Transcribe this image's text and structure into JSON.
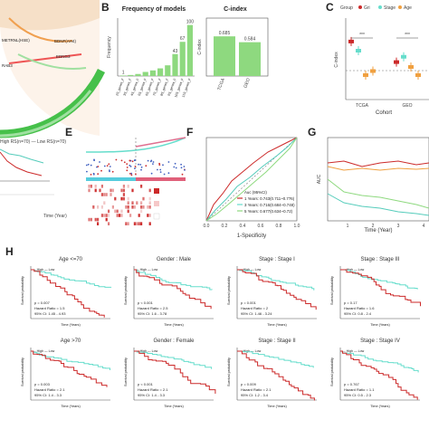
{
  "panels": {
    "A": {
      "label": "",
      "genes": [
        "METRNL(HSE)",
        "BDNF(AH4)",
        "EDNG3",
        "RAB3",
        "PTGER4",
        "ADAM9"
      ]
    },
    "B": {
      "label": "B"
    },
    "C": {
      "label": "C"
    },
    "E": {
      "label": "E"
    },
    "F": {
      "label": "F"
    },
    "G": {
      "label": "G"
    },
    "H": {
      "label": "H"
    }
  },
  "colors": {
    "green": "#8ed97f",
    "teal": "#55ccbb",
    "red": "#cc2a2a",
    "orange": "#f0a040",
    "cyan": "#66ddcc",
    "pink": "#e07090",
    "blue": "#4060c0"
  },
  "chart_data": [
    {
      "type": "bar",
      "id": "B-frequency",
      "title": "Frequency of models",
      "ylabel": "Frequency",
      "categories": [
        "2S_genes_F",
        "3S_genes_F",
        "4S_genes_F",
        "5S_genes_F",
        "6S_genes_F",
        "7S_genes_F",
        "8S_genes_F",
        "9S_genes_F",
        "10S_genes_F",
        "11S_genes_F"
      ],
      "values": [
        1,
        2,
        4,
        8,
        11,
        15,
        21,
        43,
        67,
        100
      ],
      "value_labels": [
        "1",
        "",
        "",
        "",
        "",
        "",
        "",
        "43",
        "67",
        "100"
      ],
      "ylim": [
        0,
        110
      ]
    },
    {
      "type": "bar",
      "id": "B-cindex",
      "title": "C-index",
      "ylabel": "C-index",
      "categories": [
        "TCGA",
        "GEO"
      ],
      "values": [
        0.685,
        0.584
      ],
      "value_labels": [
        "0.685",
        "0.584"
      ],
      "ylim": [
        0,
        1
      ]
    },
    {
      "type": "scatter",
      "id": "C-cindex",
      "xlabel": "Cohort",
      "ylabel": "C-index",
      "categories": [
        "TCGA",
        "GEO"
      ],
      "legend_title": "Group",
      "series": [
        {
          "name": "Gri",
          "values": [
            0.685,
            0.584
          ]
        },
        {
          "name": "Stage",
          "values": [
            0.64,
            0.61
          ]
        },
        {
          "name": "Age",
          "values": [
            0.52,
            0.56
          ]
        },
        {
          "name": "",
          "values": [
            0.54,
            0.52
          ]
        }
      ],
      "annotations": [
        "***",
        "***"
      ],
      "ylim": [
        0.4,
        0.8
      ]
    },
    {
      "type": "line",
      "id": "F-roc",
      "xlabel": "1-Specificity",
      "ylabel": "Sensitivity",
      "legend": [
        "Auc (95%CI)",
        "1 Years: 0.743(0.711~0.776)",
        "3 Years: 0.716(0.684~0.748)",
        "5 Years: 0.677(0.634~0.72)"
      ],
      "xticks": [
        "0.0",
        "0.2",
        "0.4",
        "0.6",
        "0.8",
        "1.0"
      ]
    },
    {
      "type": "line",
      "id": "G-auc",
      "xlabel": "Time (Year)",
      "ylabel": "AUC",
      "xticks": [
        "1",
        "2",
        "3",
        "4"
      ]
    }
  ],
  "km": {
    "ylabel": "Survival probability",
    "xlabel": "Time (Years)",
    "top": [
      {
        "title": "Age <=70",
        "p": "p = 0.007",
        "hr": "Hazard Ratio = 1.5",
        "ci": "95% CI: 1.45 - 4.93"
      },
      {
        "title": "Gender : Male",
        "p": "p < 0.001",
        "hr": "Hazard Ratio = 2.5",
        "ci": "95% CI: 1.6 - 3.78"
      },
      {
        "title": "Stage : Stage I",
        "p": "p = 0.001",
        "hr": "Hazard Ratio = 2",
        "ci": "95% CI: 1.46 - 3.24"
      },
      {
        "title": "Stage : Stage III",
        "p": "p = 0.17",
        "hr": "Hazard Ratio = 1.6",
        "ci": "95% CI: 0.8 - 2.4"
      }
    ],
    "bottom": [
      {
        "title": "Age >70",
        "p": "p = 0.003",
        "hr": "Hazard Ratio = 2.1",
        "ci": "95% CI: 1.4 - 3.3"
      },
      {
        "title": "Gender : Female",
        "p": "p < 0.001",
        "hr": "Hazard Ratio = 2.1",
        "ci": "95% CI: 1.4 - 3.3"
      },
      {
        "title": "Stage : Stage II",
        "p": "p = 0.009",
        "hr": "Hazard Ratio = 2.1",
        "ci": "95% CI: 1.2 - 3.4"
      },
      {
        "title": "Stage : Stage IV",
        "p": "p = 0.767",
        "hr": "Hazard Ratio = 1.1",
        "ci": "95% CI: 0.5 - 2.3"
      }
    ]
  }
}
